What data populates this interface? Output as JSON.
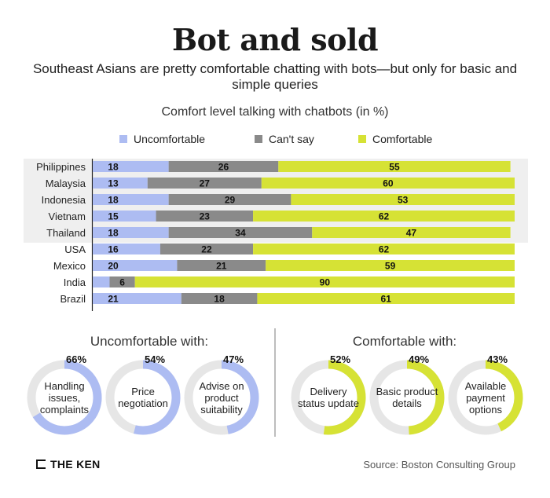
{
  "title": "Bot and sold",
  "subtitle": "Southeast Asians are pretty comfortable chatting with bots—but only for basic and simple queries",
  "chart_title": "Comfort level talking with chatbots (in %)",
  "colors": {
    "uncomfortable": "#adbcf2",
    "cant_say": "#8a8a8a",
    "comfortable": "#d6e235",
    "track": "#e6e6e6",
    "highlight": "#efefef"
  },
  "chart_data": {
    "type": "bar",
    "orientation": "horizontal",
    "stacked": true,
    "title": "Comfort level talking with chatbots (in %)",
    "legend": [
      "Uncomfortable",
      "Can't say",
      "Comfortable"
    ],
    "categories": [
      "Philippines",
      "Malaysia",
      "Indonesia",
      "Vietnam",
      "Thailand",
      "USA",
      "Mexico",
      "India",
      "Brazil"
    ],
    "highlighted": [
      "Philippines",
      "Malaysia",
      "Indonesia",
      "Vietnam",
      "Thailand"
    ],
    "series": [
      {
        "name": "Uncomfortable",
        "values": [
          18,
          13,
          18,
          15,
          18,
          16,
          20,
          4,
          21
        ]
      },
      {
        "name": "Can't say",
        "values": [
          26,
          27,
          29,
          23,
          34,
          22,
          21,
          6,
          18
        ]
      },
      {
        "name": "Comfortable",
        "values": [
          55,
          60,
          53,
          62,
          47,
          62,
          59,
          90,
          61
        ]
      }
    ],
    "xlim": [
      0,
      100
    ],
    "xlabel": "",
    "ylabel": ""
  },
  "uncomfortable_with": {
    "title": "Uncomfortable with:",
    "items": [
      {
        "label": "Handling issues, complaints",
        "pct_label": "66%",
        "value": 66
      },
      {
        "label": "Price negotiation",
        "pct_label": "54%",
        "value": 54
      },
      {
        "label": "Advise on product suitability",
        "pct_label": "47%",
        "value": 47
      }
    ]
  },
  "comfortable_with": {
    "title": "Comfortable with:",
    "items": [
      {
        "label": "Delivery status update",
        "pct_label": "52%",
        "value": 52
      },
      {
        "label": "Basic product details",
        "pct_label": "49%",
        "value": 49
      },
      {
        "label": "Available payment options",
        "pct_label": "43%",
        "value": 43
      }
    ]
  },
  "footer": {
    "logo": "THE KEN",
    "source": "Source: Boston Consulting Group"
  }
}
